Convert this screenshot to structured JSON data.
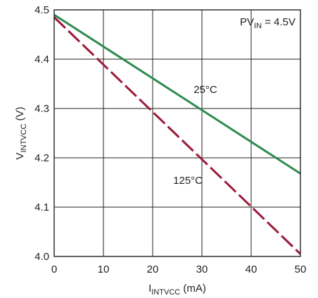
{
  "chart_data": {
    "type": "line",
    "xlabel": {
      "main": "I",
      "sub": "INTVCC",
      "rest": " (mA)"
    },
    "ylabel": {
      "main": "V",
      "sub": "INTVCC",
      "rest": " (V)"
    },
    "xlim": [
      0,
      50
    ],
    "ylim": [
      4.0,
      4.5
    ],
    "xticks": [
      "0",
      "10",
      "20",
      "30",
      "40",
      "50"
    ],
    "yticks": [
      "4.0",
      "4.1",
      "4.2",
      "4.3",
      "4.4",
      "4.5"
    ],
    "grid": true,
    "condition": {
      "main": "PV",
      "sub": "IN",
      "rest": " = 4.5V"
    },
    "series": [
      {
        "name": "25°C",
        "color": "#2e8b4e",
        "style": "solid",
        "x": [
          0,
          50
        ],
        "y": [
          4.49,
          4.168
        ]
      },
      {
        "name": "125°C",
        "color": "#9b1b3a",
        "style": "dashed",
        "x": [
          0,
          50
        ],
        "y": [
          4.485,
          4.005
        ]
      }
    ]
  }
}
